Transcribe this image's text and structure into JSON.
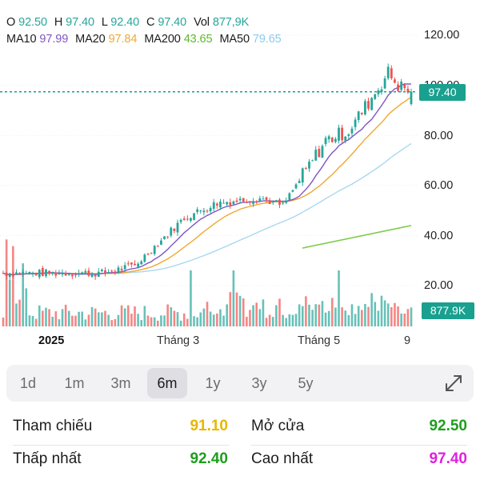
{
  "ohlc": {
    "o_label": "O",
    "o_value": "92.50",
    "h_label": "H",
    "h_value": "97.40",
    "l_label": "L",
    "l_value": "92.40",
    "c_label": "C",
    "c_value": "97.40",
    "vol_label": "Vol",
    "vol_value": "877,9K"
  },
  "ma": {
    "ma10_label": "MA10",
    "ma10_value": "97.99",
    "ma20_label": "MA20",
    "ma20_value": "97.84",
    "ma200_label": "MA200",
    "ma200_value": "43.65",
    "ma50_label": "MA50",
    "ma50_value": "79.65"
  },
  "y_axis": [
    "120.00",
    "100.00",
    "80.00",
    "60.00",
    "40.00",
    "20.00"
  ],
  "x_axis": {
    "year": "2025",
    "m3": "Tháng 3",
    "m5": "Tháng 5",
    "end": "9"
  },
  "price_tag": "97.40",
  "volume_tag": "877.9K",
  "ranges": [
    {
      "label": "1d"
    },
    {
      "label": "1m"
    },
    {
      "label": "3m"
    },
    {
      "label": "6m",
      "active": true
    },
    {
      "label": "1y"
    },
    {
      "label": "3y"
    },
    {
      "label": "5y"
    }
  ],
  "stats": {
    "ref_label": "Tham chiếu",
    "ref_value": "91.10",
    "open_label": "Mở cửa",
    "open_value": "92.50",
    "low_label": "Thấp nhất",
    "low_value": "92.40",
    "high_label": "Cao nhất",
    "high_value": "97.40"
  },
  "colors": {
    "up": "#26a69a",
    "down": "#ef5350",
    "ma10": "#7e57c2",
    "ma20": "#f0a830",
    "ma200": "#7ccc4a",
    "ma50": "#a8d8f0",
    "ref": "#e6b800",
    "green": "#1e9e1e",
    "magenta": "#e020e0"
  },
  "chart_data": {
    "type": "candlestick",
    "ylim": [
      15,
      125
    ],
    "y_ticks": [
      120,
      100,
      80,
      60,
      40,
      20
    ],
    "last_close": 97.4,
    "ma200_range": [
      35,
      44
    ]
  }
}
